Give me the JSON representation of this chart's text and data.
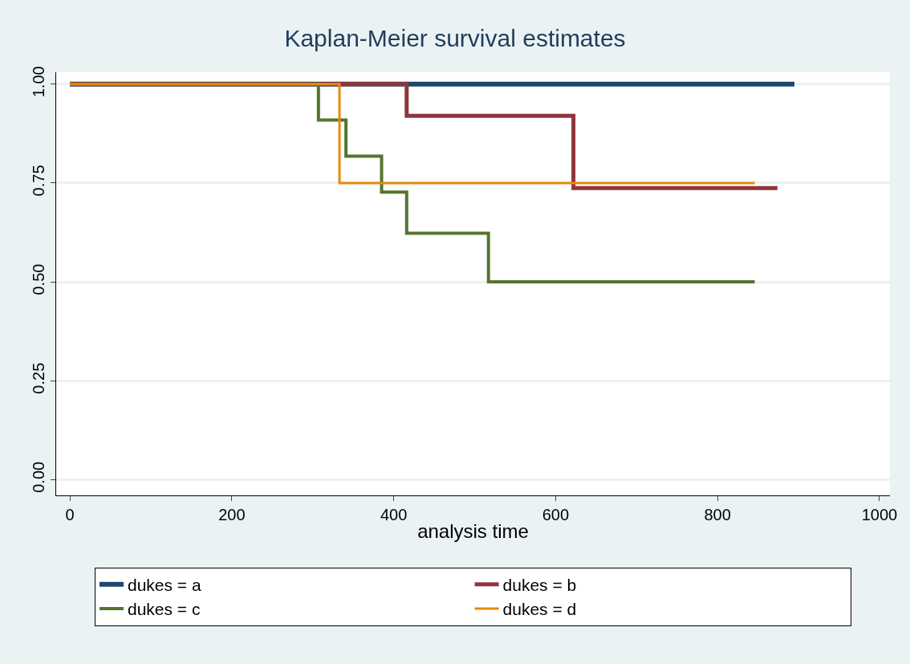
{
  "chart_data": {
    "type": "step",
    "title": "Kaplan-Meier survival estimates",
    "xlabel": "analysis time",
    "series": [
      {
        "name": "dukes = a",
        "color": "#1a476f",
        "x": [
          0,
          895
        ],
        "values": [
          1,
          1
        ]
      },
      {
        "name": "dukes = b",
        "color": "#90353b",
        "x": [
          0,
          416,
          622,
          874
        ],
        "values": [
          1,
          0.92,
          0.737,
          0.737
        ]
      },
      {
        "name": "dukes = c",
        "color": "#55752f",
        "x": [
          0,
          307,
          341,
          385,
          416,
          517,
          846
        ],
        "values": [
          1,
          0.909,
          0.818,
          0.727,
          0.623,
          0.5,
          0.5
        ]
      },
      {
        "name": "dukes = d",
        "color": "#e8890c",
        "x": [
          0,
          333,
          846
        ],
        "values": [
          1,
          0.75,
          0.75
        ]
      }
    ],
    "xlim": [
      -17,
      1013
    ],
    "ylim": [
      -0.04,
      1.03
    ],
    "xticks": [
      0,
      200,
      400,
      600,
      800,
      1000
    ],
    "yticks": [
      {
        "value": 0,
        "label": "0.00"
      },
      {
        "value": 0.25,
        "label": "0.25"
      },
      {
        "value": 0.5,
        "label": "0.50"
      },
      {
        "value": 0.75,
        "label": "0.75"
      },
      {
        "value": 1,
        "label": "1.00"
      }
    ],
    "grid": "y",
    "legend": "bottom",
    "line_style": "solid",
    "marker": "none"
  }
}
